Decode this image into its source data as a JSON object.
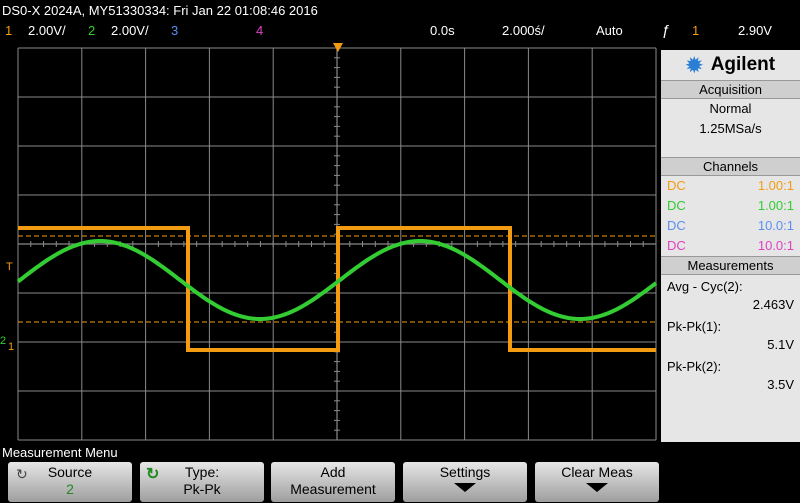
{
  "header": {
    "title": "DS0-X 2024A, MY51330334: Fri Jan 22 01:08:46 2016"
  },
  "status": {
    "ch1_num": "1",
    "ch1_scale": "2.00V/",
    "ch2_num": "2",
    "ch2_scale": "2.00V/",
    "ch3_num": "3",
    "ch4_num": "4",
    "time_offset": "0.0s",
    "time_scale": "2.000ś/",
    "trigger_mode": "Auto",
    "trigger_icon": "trigger-edge-icon",
    "trigger_source": "1",
    "trigger_level": "2.90V"
  },
  "colors": {
    "ch1": "#f39c12",
    "ch2": "#33cc33",
    "ch3": "#5b8ff0",
    "ch4": "#e040c0",
    "grid": "#8a8a8a"
  },
  "panel": {
    "brand": "Agilent",
    "acquisition_title": "Acquisition",
    "acq_mode": "Normal",
    "acq_rate": "1.25MSa/s",
    "channels_title": "Channels",
    "channels": [
      {
        "coupling": "DC",
        "ratio": "1.00:1"
      },
      {
        "coupling": "DC",
        "ratio": "1.00:1"
      },
      {
        "coupling": "DC",
        "ratio": "10.0:1"
      },
      {
        "coupling": "DC",
        "ratio": "10.0:1"
      }
    ],
    "measurements_title": "Measurements",
    "meas": [
      {
        "label": "Avg - Cyc(2):",
        "value": "2.463V"
      },
      {
        "label": "Pk-Pk(1):",
        "value": "5.1V"
      },
      {
        "label": "Pk-Pk(2):",
        "value": "3.5V"
      }
    ]
  },
  "screen": {
    "trigger_marker": "T",
    "ch1_marker": "1",
    "ch2_marker": "2"
  },
  "softkeys": {
    "menu_label": "Measurement Menu",
    "source_label": "Source",
    "source_value": "2",
    "type_label": "Type:",
    "type_value": "Pk-Pk",
    "add_line1": "Add",
    "add_line2": "Measurement",
    "settings_label": "Settings",
    "clear_label": "Clear Meas"
  }
}
